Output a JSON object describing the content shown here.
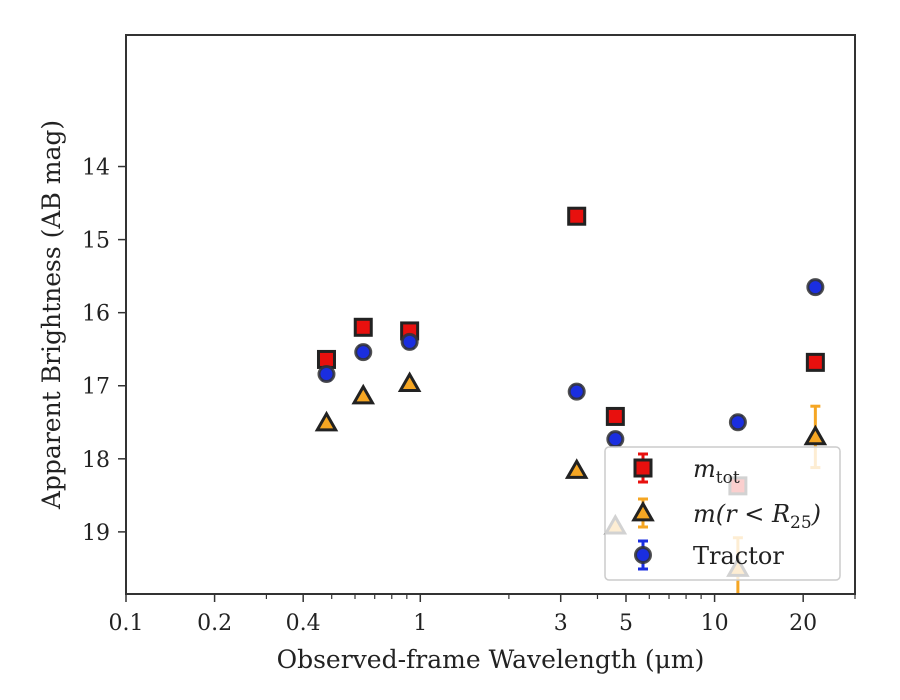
{
  "chart_data": {
    "type": "scatter",
    "xlabel": "Observed-frame Wavelength (μm)",
    "ylabel": "Apparent Brightness (AB mag)",
    "xscale": "log",
    "yaxis_inverted": true,
    "xlim": [
      0.1,
      30
    ],
    "ylim": [
      19.85,
      12.2
    ],
    "xticks": [
      0.1,
      0.2,
      0.4,
      1,
      3,
      5,
      10,
      20
    ],
    "xtick_labels": [
      "0.1",
      "0.2",
      "0.4",
      "1",
      "3",
      "5",
      "10",
      "20"
    ],
    "yticks": [
      14,
      15,
      16,
      17,
      18,
      19
    ],
    "ytick_labels": [
      "14",
      "15",
      "16",
      "17",
      "18",
      "19"
    ],
    "grid": false,
    "legend_position": "lower-right",
    "series": [
      {
        "name": "m_tot",
        "marker": "square",
        "face_color": "#e8100e",
        "edge_color": "#222222",
        "err_color": "#e8100e",
        "points": [
          {
            "x": 0.48,
            "y": 16.64,
            "err": 0.06
          },
          {
            "x": 0.64,
            "y": 16.2,
            "err": 0.06
          },
          {
            "x": 0.92,
            "y": 16.25,
            "err": 0.06
          },
          {
            "x": 3.4,
            "y": 14.68,
            "err": 0.05
          },
          {
            "x": 4.6,
            "y": 17.42,
            "err": 0.07
          },
          {
            "x": 12.0,
            "y": 18.37,
            "err": 0.08
          },
          {
            "x": 22.0,
            "y": 16.68,
            "err": 0.07
          }
        ]
      },
      {
        "name": "m(r < R25)",
        "marker": "triangle",
        "face_color": "#f5a623",
        "edge_color": "#222222",
        "err_color": "#f5a623",
        "points": [
          {
            "x": 0.48,
            "y": 17.51,
            "err": 0.0
          },
          {
            "x": 0.64,
            "y": 17.14,
            "err": 0.0
          },
          {
            "x": 0.92,
            "y": 16.97,
            "err": 0.0
          },
          {
            "x": 3.4,
            "y": 18.16,
            "err": 0.0
          },
          {
            "x": 4.6,
            "y": 18.92,
            "err": 0.0
          },
          {
            "x": 12.0,
            "y": 19.5,
            "err": 0.42
          },
          {
            "x": 22.0,
            "y": 17.7,
            "err": 0.42
          }
        ]
      },
      {
        "name": "Tractor",
        "marker": "circle",
        "face_color": "#1a2ee0",
        "edge_color": "#333333",
        "err_color": "#1a2ee0",
        "points": [
          {
            "x": 0.48,
            "y": 16.84,
            "err": 0.08
          },
          {
            "x": 0.64,
            "y": 16.54,
            "err": 0.08
          },
          {
            "x": 0.92,
            "y": 16.4,
            "err": 0.08
          },
          {
            "x": 3.4,
            "y": 17.08,
            "err": 0.08
          },
          {
            "x": 4.6,
            "y": 17.73,
            "err": 0.08
          },
          {
            "x": 12.0,
            "y": 17.5,
            "err": 0.08
          },
          {
            "x": 22.0,
            "y": 15.65,
            "err": 0.08
          }
        ]
      }
    ],
    "legend": [
      {
        "series": "m_tot",
        "label_base": "m",
        "label_sub": "tot",
        "label_rest": ""
      },
      {
        "series": "m(r < R25)",
        "label_base": "m(r < R",
        "label_sub": "25",
        "label_rest": ")"
      },
      {
        "series": "Tractor",
        "label_base": "Tractor",
        "label_sub": "",
        "label_rest": ""
      }
    ]
  }
}
